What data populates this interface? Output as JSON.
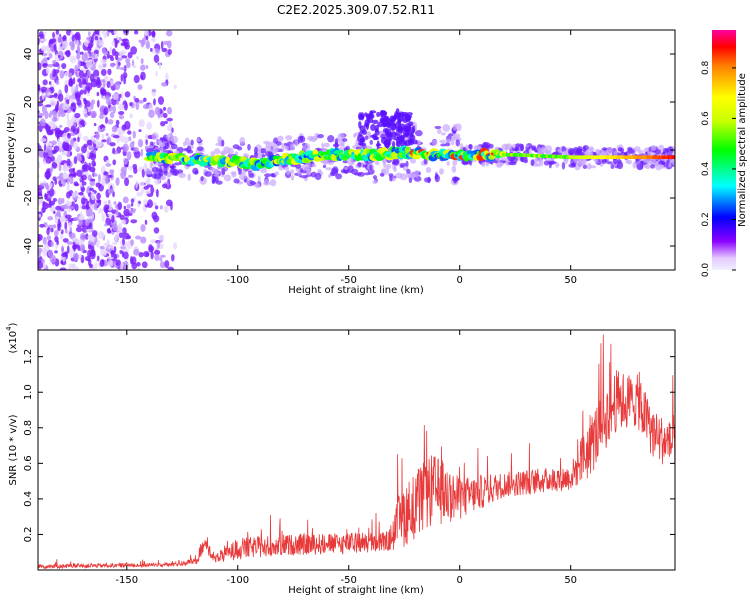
{
  "title": "C2E2.2025.309.07.52.R11",
  "chart_data": [
    {
      "type": "heatmap",
      "title": "C2E2.2025.309.07.52.R11",
      "xlabel": "Height of straight line (km)",
      "ylabel": "Frequency (Hz)",
      "xlim": [
        -190,
        97
      ],
      "ylim": [
        -50,
        50
      ],
      "x_ticks": [
        -150,
        -100,
        -50,
        0,
        50
      ],
      "y_ticks": [
        -40,
        -20,
        0,
        20,
        40
      ],
      "description_ridge": [
        {
          "x": -140,
          "y": -3
        },
        {
          "x": -120,
          "y": -4
        },
        {
          "x": -100,
          "y": -5
        },
        {
          "x": -90,
          "y": -6
        },
        {
          "x": -80,
          "y": -4
        },
        {
          "x": -60,
          "y": -2
        },
        {
          "x": -40,
          "y": -2
        },
        {
          "x": -25,
          "y": -1
        },
        {
          "x": -10,
          "y": -2
        },
        {
          "x": 0,
          "y": -2
        },
        {
          "x": 25,
          "y": -2
        },
        {
          "x": 50,
          "y": -3
        },
        {
          "x": 75,
          "y": -3
        },
        {
          "x": 97,
          "y": -3
        }
      ],
      "colorbar": {
        "label": "Normalized spectral amplitude",
        "range": [
          0,
          0.95
        ],
        "ticks": [
          0.0,
          0.2,
          0.4,
          0.6,
          0.8
        ]
      }
    },
    {
      "type": "line",
      "xlabel": "Height of straight line (km)",
      "ylabel": "SNR (10 * v/v)",
      "y_multiplier": "(x10",
      "y_multiplier_exp": "4",
      "xlim": [
        -190,
        97
      ],
      "ylim": [
        0,
        1.35
      ],
      "x_ticks": [
        -150,
        -100,
        -50,
        0,
        50
      ],
      "y_ticks": [
        0.2,
        0.4,
        0.6,
        0.8,
        1.0,
        1.2
      ],
      "series": [
        {
          "name": "SNR",
          "color": "#e83a3a",
          "envelope": [
            {
              "x": -190,
              "base": 0.02,
              "amp": 0.02
            },
            {
              "x": -130,
              "base": 0.03,
              "amp": 0.02
            },
            {
              "x": -118,
              "base": 0.05,
              "amp": 0.03
            },
            {
              "x": -115,
              "base": 0.15,
              "amp": 0.07
            },
            {
              "x": -110,
              "base": 0.06,
              "amp": 0.04
            },
            {
              "x": -100,
              "base": 0.12,
              "amp": 0.1
            },
            {
              "x": -80,
              "base": 0.14,
              "amp": 0.1
            },
            {
              "x": -50,
              "base": 0.15,
              "amp": 0.1
            },
            {
              "x": -32,
              "base": 0.16,
              "amp": 0.1
            },
            {
              "x": -26,
              "base": 0.3,
              "amp": 0.3
            },
            {
              "x": -12,
              "base": 0.45,
              "amp": 0.35
            },
            {
              "x": 0,
              "base": 0.4,
              "amp": 0.2
            },
            {
              "x": 20,
              "base": 0.48,
              "amp": 0.12
            },
            {
              "x": 50,
              "base": 0.52,
              "amp": 0.12
            },
            {
              "x": 58,
              "base": 0.68,
              "amp": 0.3
            },
            {
              "x": 70,
              "base": 0.95,
              "amp": 0.3
            },
            {
              "x": 80,
              "base": 0.95,
              "amp": 0.25
            },
            {
              "x": 88,
              "base": 0.75,
              "amp": 0.25
            },
            {
              "x": 97,
              "base": 0.7,
              "amp": 0.2
            }
          ]
        }
      ]
    }
  ]
}
